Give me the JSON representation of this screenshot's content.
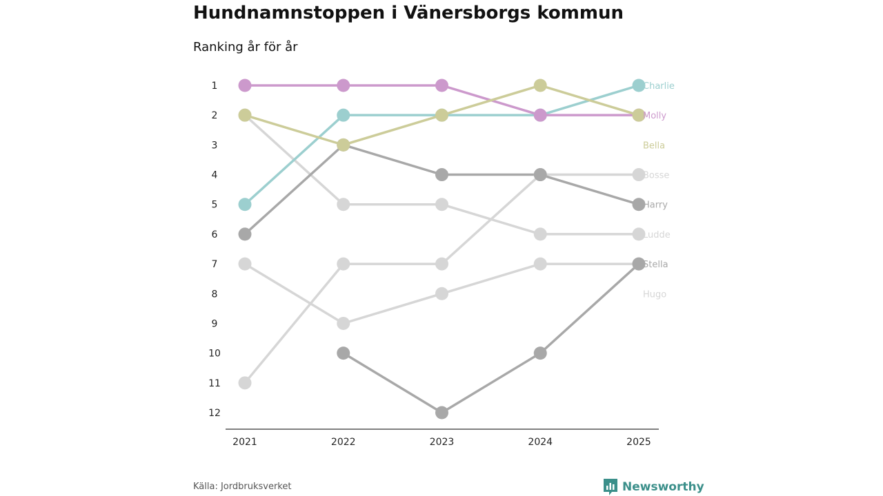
{
  "title": "Hundnamnstoppen i Vänersborgs kommun",
  "subtitle": "Ranking år för år",
  "source": "Källa: Jordbruksverket",
  "brand": "Newsworthy",
  "chart_data": {
    "type": "line",
    "chart_kind": "bump",
    "title": "Hundnamnstoppen i Vänersborgs kommun",
    "subtitle": "Ranking år för år",
    "x": [
      "2021",
      "2022",
      "2023",
      "2024",
      "2025"
    ],
    "y_ticks": [
      "1",
      "2",
      "3",
      "4",
      "5",
      "6",
      "7",
      "8",
      "9",
      "10",
      "11",
      "12"
    ],
    "ylim": [
      1,
      12
    ],
    "y_inverted": true,
    "series": [
      {
        "name": "Charlie",
        "color": "#9ccfcf",
        "values": [
          5,
          2,
          2,
          2,
          1
        ]
      },
      {
        "name": "Molly",
        "color": "#cc99cc",
        "values": [
          1,
          1,
          1,
          2,
          2
        ]
      },
      {
        "name": "Bella",
        "color": "#cccc99",
        "values": [
          2,
          3,
          2,
          1,
          2
        ]
      },
      {
        "name": "Bosse",
        "color": "#d6d6d6",
        "values": [
          11,
          7,
          7,
          4,
          4
        ]
      },
      {
        "name": "Harry",
        "color": "#a8a8a8",
        "values": [
          6,
          3,
          4,
          4,
          5
        ]
      },
      {
        "name": "Ludde",
        "color": "#d6d6d6",
        "values": [
          2,
          5,
          5,
          6,
          6
        ]
      },
      {
        "name": "Stella",
        "color": "#a8a8a8",
        "values": [
          null,
          10,
          12,
          10,
          7
        ]
      },
      {
        "name": "Hugo",
        "color": "#d6d6d6",
        "values": [
          7,
          9,
          8,
          7,
          7
        ]
      }
    ]
  }
}
